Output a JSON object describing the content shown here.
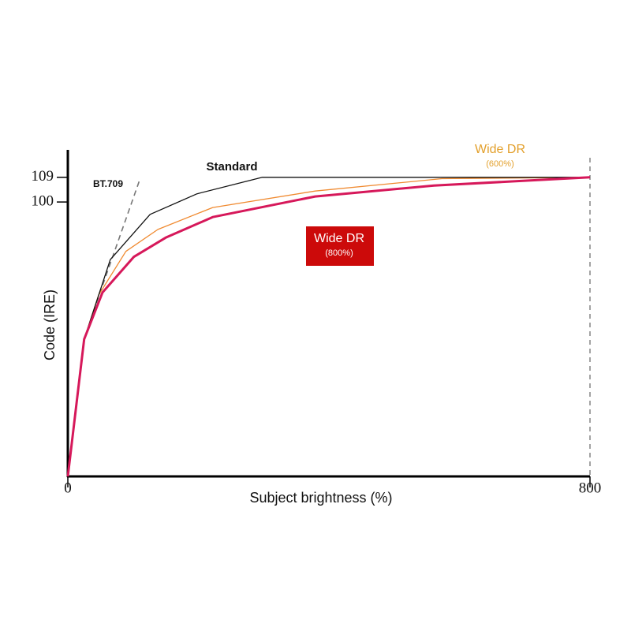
{
  "chart_data": {
    "type": "line",
    "xlabel": "Subject brightness (%)",
    "ylabel": "Code (IRE)",
    "xlim": [
      0,
      800
    ],
    "ylim": [
      0,
      119
    ],
    "xticks": [
      0,
      800
    ],
    "yticks": [
      100,
      109
    ],
    "series": [
      {
        "name": "Standard",
        "color": "#111111",
        "style": "solid",
        "x": [
          0,
          25,
          41,
          65,
          126,
          198,
          298,
          800
        ],
        "values": [
          0,
          50,
          61.5,
          79,
          95.5,
          103,
          109,
          109
        ]
      },
      {
        "name": "BT.709",
        "color": "#777777",
        "style": "dashed",
        "x": [
          39,
          110
        ],
        "values": [
          60,
          108
        ]
      },
      {
        "name": "Wide DR",
        "subtitle": "(600%)",
        "color": "#f08a30",
        "label_color": "#e3a02c",
        "style": "solid",
        "x": [
          0,
          25,
          47,
          89,
          138,
          222,
          379,
          573,
          800
        ],
        "values": [
          0,
          50,
          66,
          82,
          90,
          98,
          104,
          108.5,
          109
        ]
      },
      {
        "name": "Wide DR",
        "subtitle": "(800%)",
        "color": "#d6185a",
        "label_color": "#cc0a0a",
        "style": "bold",
        "x": [
          0,
          25,
          53,
          101,
          150,
          222,
          379,
          561,
          800
        ],
        "values": [
          0,
          50,
          67,
          80,
          87,
          94.5,
          102,
          106,
          109
        ]
      }
    ]
  }
}
